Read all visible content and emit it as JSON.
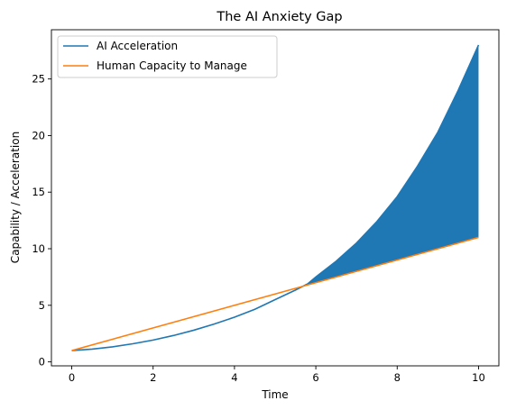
{
  "chart_data": {
    "type": "line",
    "title": "The AI Anxiety Gap",
    "xlabel": "Time",
    "ylabel": "Capability / Acceleration",
    "xlim": [
      -0.5,
      10.5
    ],
    "ylim": [
      -0.35,
      29.35
    ],
    "xticks": [
      0,
      2,
      4,
      6,
      8,
      10
    ],
    "yticks": [
      0,
      5,
      10,
      15,
      20,
      25
    ],
    "grid": false,
    "legend_position": "top-left",
    "series": [
      {
        "name": "AI Acceleration",
        "color": "#1f77b4",
        "x": [
          0,
          0.5,
          1,
          1.5,
          2,
          2.5,
          3,
          3.5,
          4,
          4.5,
          5,
          5.5,
          5.8,
          6,
          6.5,
          7,
          7.5,
          8,
          8.5,
          9,
          9.5,
          10
        ],
        "y": [
          1.0,
          1.13,
          1.33,
          1.6,
          1.93,
          2.33,
          2.8,
          3.34,
          3.95,
          4.65,
          5.5,
          6.35,
          6.9,
          7.5,
          8.9,
          10.5,
          12.4,
          14.6,
          17.3,
          20.3,
          24.0,
          28.0
        ]
      },
      {
        "name": "Human Capacity to Manage",
        "color": "#ff7f0e",
        "x": [
          0,
          10
        ],
        "y": [
          1.0,
          11.0
        ]
      }
    ],
    "fill_between": {
      "color": "#1f77b4",
      "x_start": 5.8,
      "x_end": 10
    }
  }
}
